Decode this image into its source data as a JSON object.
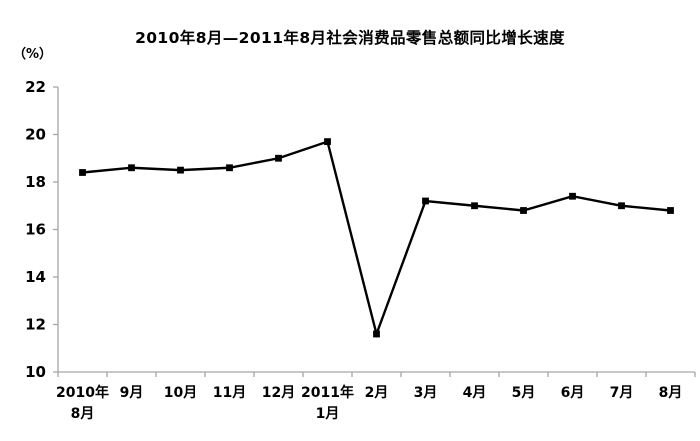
{
  "title": "2010年8月—2011年8月社会消费品零售总额同比增长速度",
  "chart_data": {
    "type": "line",
    "title": "2010年8月—2011年8月社会消费品零售总额同比增长速度",
    "categories": [
      "2010年\n8月",
      "9月",
      "10月",
      "11月",
      "12月",
      "2011年\n1月",
      "2月",
      "3月",
      "4月",
      "5月",
      "6月",
      "7月",
      "8月"
    ],
    "values": [
      18.4,
      18.6,
      18.5,
      18.6,
      19.0,
      19.7,
      11.6,
      17.2,
      17.0,
      16.8,
      17.4,
      17.0,
      16.8
    ],
    "xlabel": "",
    "ylabel": "（%）",
    "ylim": [
      10,
      22
    ],
    "yticks": [
      10,
      12,
      14,
      16,
      18,
      20,
      22
    ],
    "grid": false,
    "legend": "none",
    "line_color": "#000000",
    "marker": "square",
    "axis_color": "#a6a6a6",
    "text_color": "#000000",
    "background_color": "#ffffff"
  }
}
